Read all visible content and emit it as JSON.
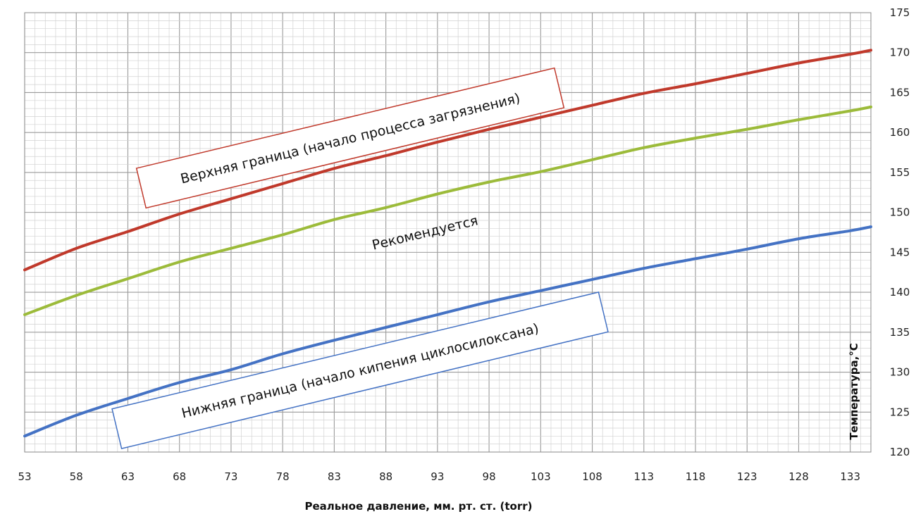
{
  "chart_data": {
    "type": "line",
    "title": "",
    "xlabel": "Реальное давление, мм. рт. ст. (torr)",
    "ylabel": "Температура,°С",
    "xlim": [
      53,
      135
    ],
    "ylim": [
      120,
      175
    ],
    "x_ticks": [
      "53",
      "58",
      "63",
      "68",
      "73",
      "78",
      "83",
      "88",
      "93",
      "98",
      "103",
      "108",
      "113",
      "118",
      "123",
      "128",
      "133"
    ],
    "y_ticks": [
      "120",
      "125",
      "130",
      "135",
      "140",
      "145",
      "150",
      "155",
      "160",
      "165",
      "170",
      "175"
    ],
    "grid": true,
    "legend": "none",
    "series": [
      {
        "color": "#c0392b",
        "x": [
          53,
          58,
          63,
          68,
          73,
          78,
          83,
          88,
          93,
          98,
          103,
          108,
          113,
          118,
          123,
          128,
          133,
          135
        ],
        "y": [
          142.8,
          145.5,
          147.6,
          149.8,
          151.7,
          153.6,
          155.5,
          157.1,
          158.8,
          160.4,
          161.9,
          163.4,
          164.9,
          166.1,
          167.4,
          168.7,
          169.8,
          170.3
        ]
      },
      {
        "color": "#9cbb3a",
        "x": [
          53,
          58,
          63,
          68,
          73,
          78,
          83,
          88,
          93,
          98,
          103,
          108,
          113,
          118,
          123,
          128,
          133,
          135
        ],
        "y": [
          137.2,
          139.6,
          141.7,
          143.8,
          145.5,
          147.2,
          149.1,
          150.6,
          152.3,
          153.8,
          155.1,
          156.6,
          158.1,
          159.3,
          160.4,
          161.6,
          162.7,
          163.2
        ]
      },
      {
        "color": "#4472c4",
        "x": [
          53,
          58,
          63,
          68,
          73,
          78,
          83,
          88,
          93,
          98,
          103,
          108,
          113,
          118,
          123,
          128,
          133,
          135
        ],
        "y": [
          122.0,
          124.6,
          126.7,
          128.7,
          130.3,
          132.3,
          134.0,
          135.6,
          137.2,
          138.8,
          140.2,
          141.6,
          143.0,
          144.2,
          145.4,
          146.7,
          147.7,
          148.2
        ]
      }
    ],
    "annotations": [
      {
        "text": "Верхняя граница (начало процесса загрязнения)",
        "border_color": "#c0392b"
      },
      {
        "text": "Рекомендуется"
      },
      {
        "text": "Нижняя граница (начало кипения циклосилоксана)",
        "border_color": "#4472c4"
      }
    ]
  }
}
